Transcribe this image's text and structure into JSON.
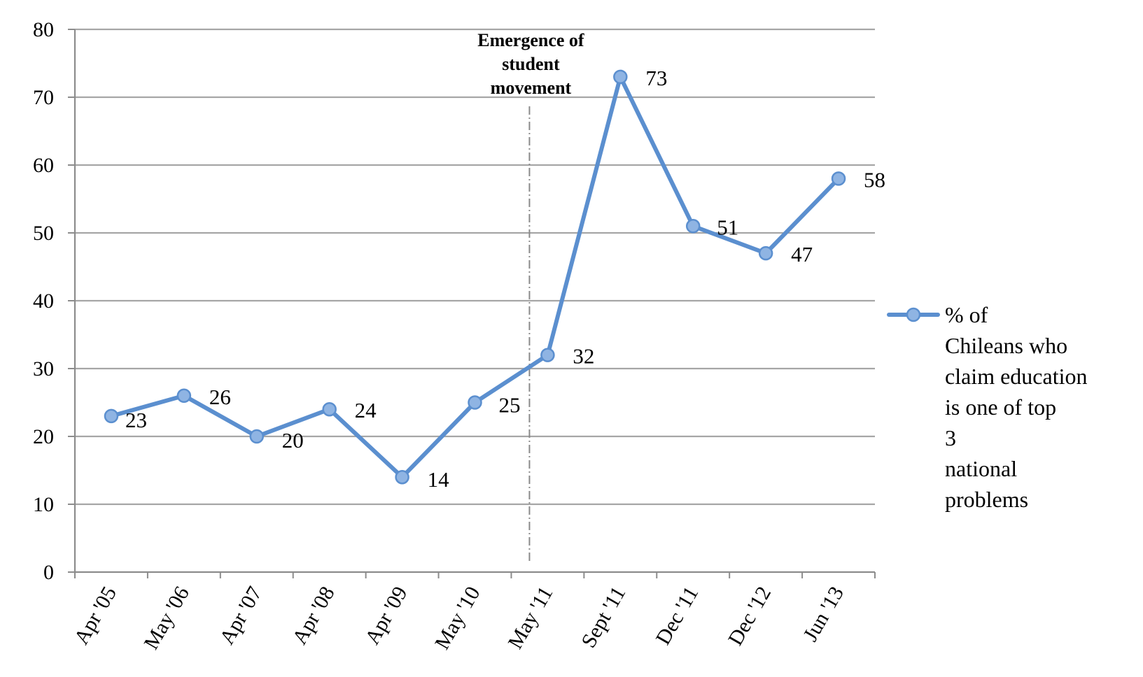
{
  "chart_data": {
    "type": "line",
    "title": "",
    "xlabel": "",
    "ylabel": "",
    "ylim": [
      0,
      80
    ],
    "yticks": [
      0,
      10,
      20,
      30,
      40,
      50,
      60,
      70,
      80
    ],
    "grid": true,
    "legend_position": "right",
    "categories": [
      "Apr '05",
      "May '06",
      "Apr '07",
      "Apr '08",
      "Apr '09",
      "May '10",
      "May '11",
      "Sept '11",
      "Dec '11",
      "Dec '12",
      "Jun '13"
    ],
    "series": [
      {
        "name": "% of Chileans who claim education is one of top 3 national problems",
        "values": [
          23,
          26,
          20,
          24,
          14,
          25,
          32,
          73,
          51,
          47,
          58
        ],
        "color": "#5b8fcf"
      }
    ],
    "annotations": [
      {
        "text_lines": [
          "Emergence of",
          "student",
          "movement"
        ],
        "at_category": "May '11",
        "style": "dash-dot vertical line"
      }
    ]
  }
}
